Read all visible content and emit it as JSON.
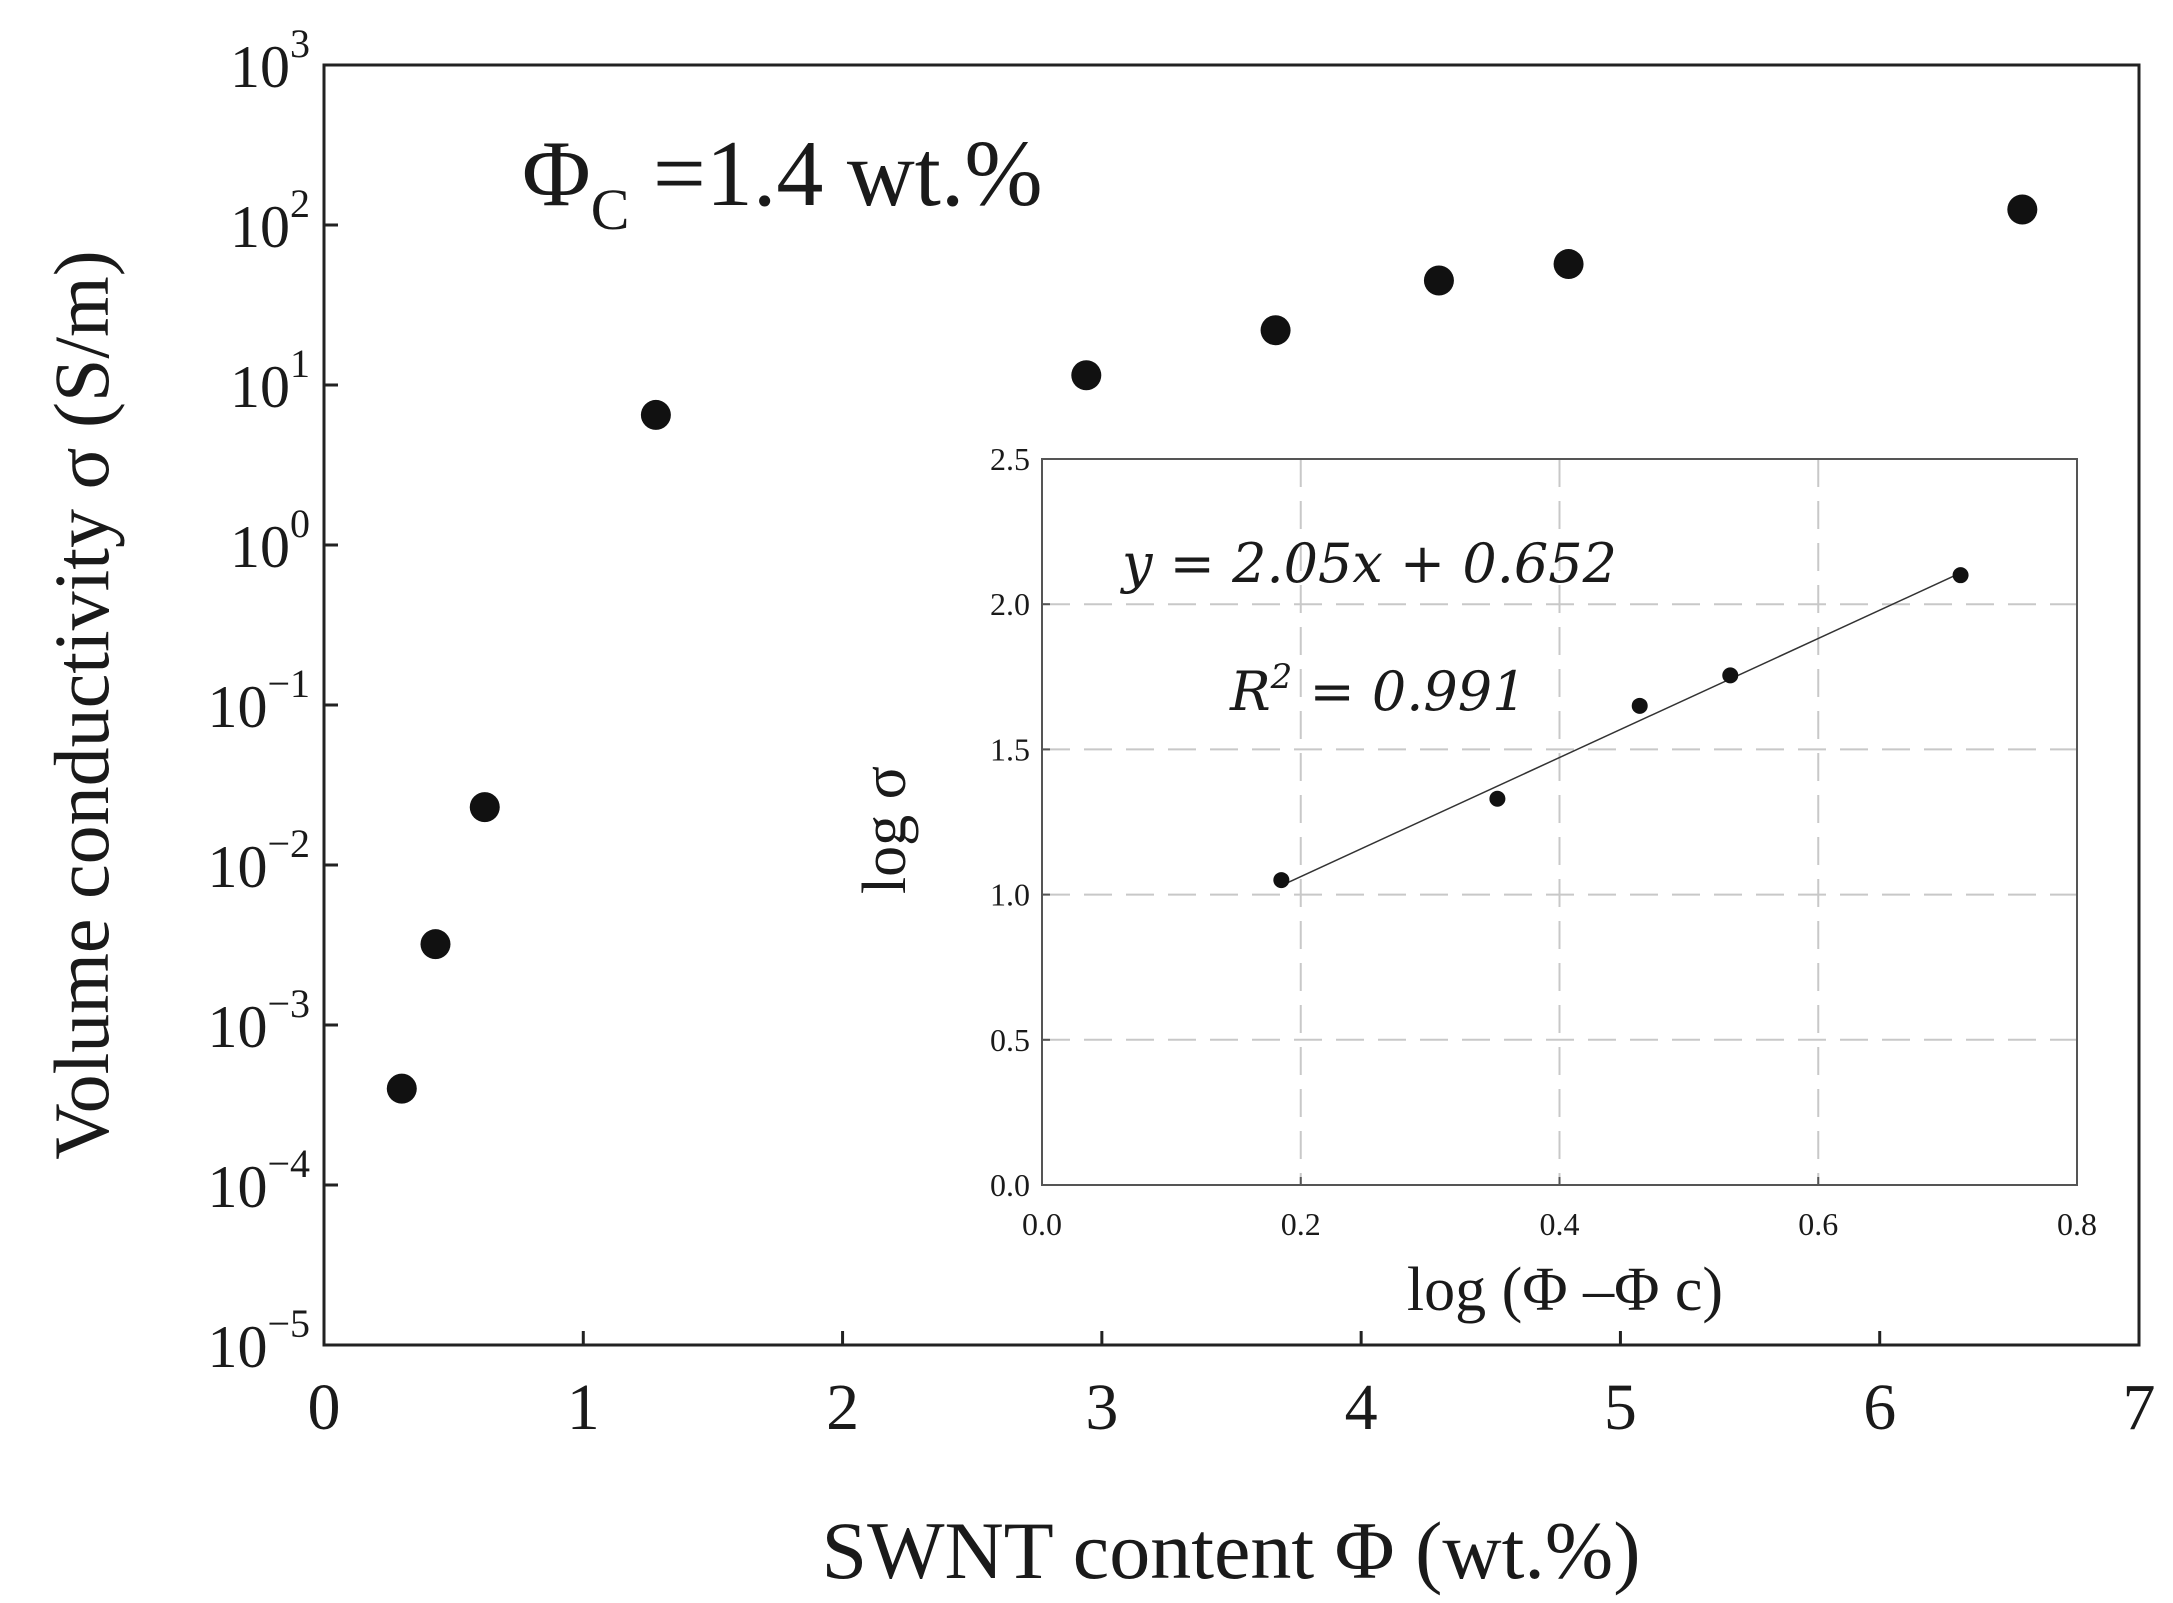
{
  "chart_data": [
    {
      "id": "main",
      "type": "scatter",
      "xlabel": "SWNT content Φ  (wt.%)",
      "ylabel": "Volume conductivity σ  (S/m)",
      "xlim": [
        0,
        7
      ],
      "x_ticks": [
        "0",
        "1",
        "2",
        "3",
        "4",
        "5",
        "6",
        "7"
      ],
      "y_scale": "log",
      "ylim_exponent": [
        -5,
        3
      ],
      "y_tick_exponents": [
        "-5",
        "-4",
        "-3",
        "-2",
        "-1",
        "0",
        "1",
        "2",
        "3"
      ],
      "annotation": {
        "prefix": "Φ",
        "subscript": "C",
        "suffix": " =1.4 wt.%"
      },
      "series": [
        {
          "name": "conductivity",
          "x": [
            0.3,
            0.43,
            0.62,
            1.28,
            2.94,
            3.67,
            4.3,
            4.8,
            6.55
          ],
          "y": [
            0.0004,
            0.0032,
            0.023,
            6.5,
            11.5,
            22,
            45,
            57,
            125
          ]
        }
      ]
    },
    {
      "id": "inset",
      "type": "scatter",
      "xlabel": "log (Φ –Φ c)",
      "ylabel": "log σ",
      "xlim": [
        0,
        0.8
      ],
      "ylim": [
        0,
        2.5
      ],
      "x_ticks": [
        "0.0",
        "0.2",
        "0.4",
        "0.6",
        "0.8"
      ],
      "y_ticks": [
        "0.0",
        "0.5",
        "1.0",
        "1.5",
        "2.0",
        "2.5"
      ],
      "grid": true,
      "equation": "y = 2.05x + 0.652",
      "r2": {
        "prefix": "R",
        "power": "2",
        "suffix": " = 0.991"
      },
      "fit": {
        "slope": 2.05,
        "intercept": 0.652,
        "x_range": [
          0.185,
          0.71
        ]
      },
      "series": [
        {
          "name": "log conductivity",
          "x": [
            0.185,
            0.352,
            0.462,
            0.532,
            0.71
          ],
          "y": [
            1.05,
            1.33,
            1.65,
            1.755,
            2.1
          ]
        }
      ]
    }
  ]
}
